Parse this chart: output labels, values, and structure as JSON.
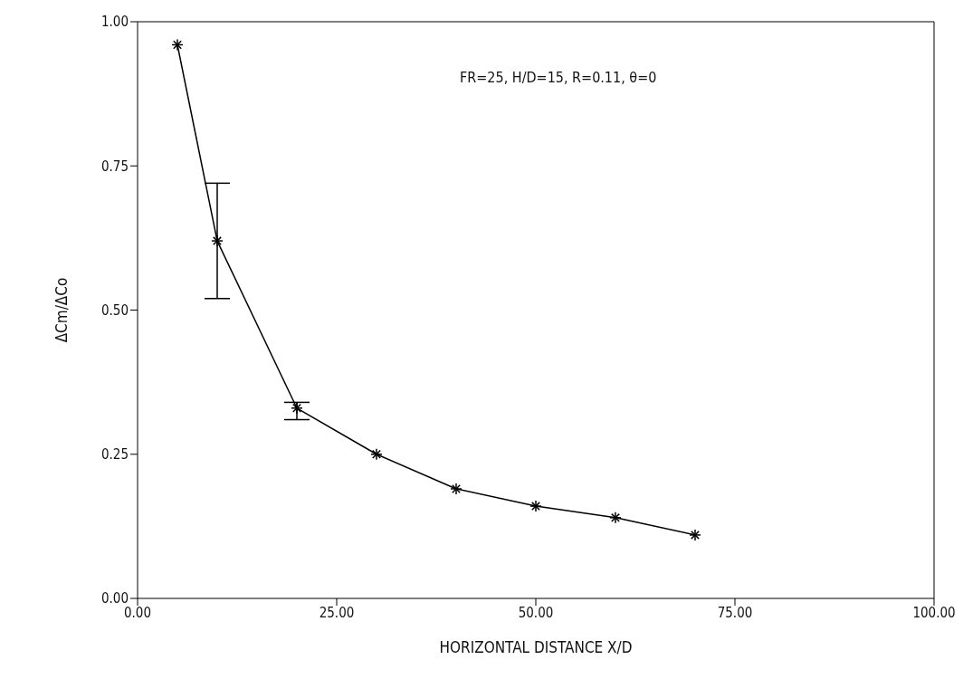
{
  "chart_data": {
    "type": "line",
    "xlabel": "HORIZONTAL DISTANCE X/D",
    "ylabel": "ΔCm/ΔCo",
    "annotations": [
      "FR=25, H/D=15, R=0.11, θ=0"
    ],
    "x": [
      5,
      10,
      20,
      30,
      40,
      50,
      60,
      70
    ],
    "series": [
      {
        "color": "#000000",
        "values": [
          0.96,
          0.62,
          0.33,
          0.25,
          0.19,
          0.16,
          0.14,
          0.11
        ],
        "errors": [
          null,
          [
            0.52,
            0.72
          ],
          [
            0.31,
            0.34
          ],
          null,
          null,
          null,
          null,
          null
        ]
      }
    ],
    "xlim": [
      0,
      100
    ],
    "xticks": [
      {
        "value": 0,
        "label": "0.00"
      },
      {
        "value": 25,
        "label": "25.00"
      },
      {
        "value": 50,
        "label": "50.00"
      },
      {
        "value": 75,
        "label": "75.00"
      },
      {
        "value": 100,
        "label": "100.00"
      }
    ],
    "ylim": [
      0,
      1
    ],
    "yticks": [
      {
        "value": 0,
        "label": "0.00"
      },
      {
        "value": 0.25,
        "label": "0.25"
      },
      {
        "value": 0.5,
        "label": "0.50"
      },
      {
        "value": 0.75,
        "label": "0.75"
      },
      {
        "value": 1,
        "label": "1.00"
      }
    ],
    "grid": false,
    "legend": false,
    "marker": "cross",
    "line_style": "solid"
  }
}
